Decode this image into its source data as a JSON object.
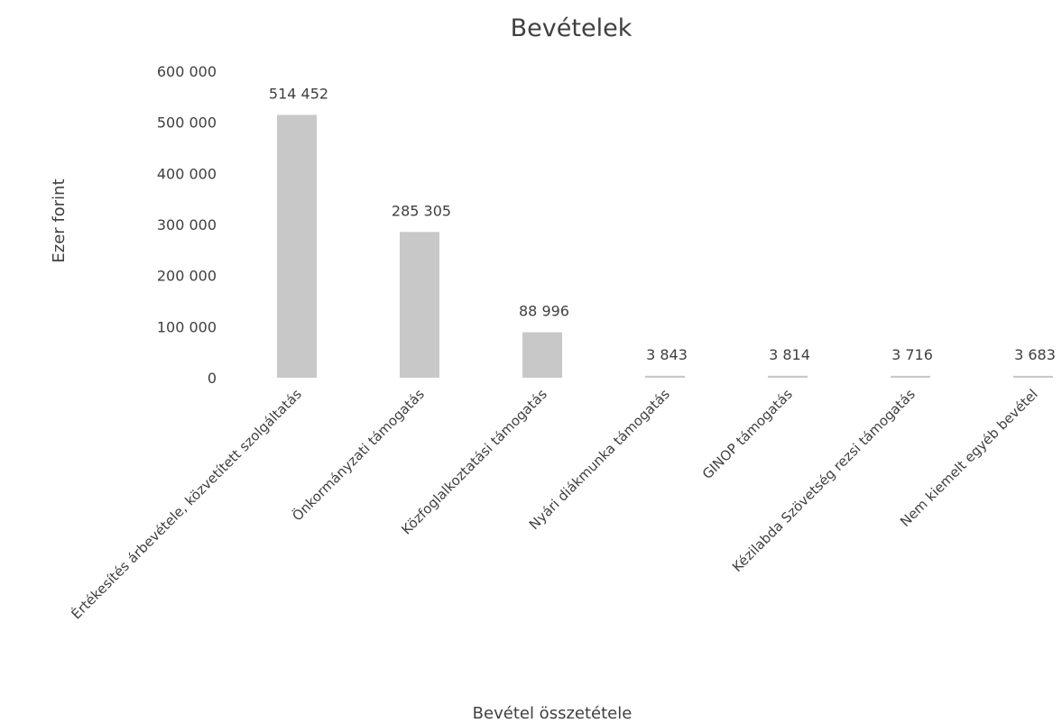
{
  "chart_data": {
    "type": "bar",
    "title": "Bevételek",
    "xlabel": "Bevétel összetétele",
    "ylabel": "Ezer forint",
    "categories": [
      "Értékesítés árbevétele, közvetített szolgáltatás",
      "Önkormányzati támogatás",
      "Közfoglalkoztatási támogatás",
      "Nyári diákmunka támogatás",
      "GINOP támogatás",
      "Kézilabda Szövetség rezsi támogatás",
      "Nem kiemelt egyéb bevétel"
    ],
    "values": [
      514452,
      285305,
      88996,
      3843,
      3814,
      3716,
      3683
    ],
    "data_labels": [
      "514 452",
      "285 305",
      "88 996",
      "3 843",
      "3 814",
      "3 716",
      "3 683"
    ],
    "ylim": [
      0,
      600000
    ],
    "yticks": [
      0,
      100000,
      200000,
      300000,
      400000,
      500000,
      600000
    ],
    "ytick_labels": [
      "0",
      "100 000",
      "200 000",
      "300 000",
      "400 000",
      "500 000",
      "600 000"
    ],
    "grid": false,
    "legend": "none",
    "bar_color": "#c8c8c8"
  }
}
